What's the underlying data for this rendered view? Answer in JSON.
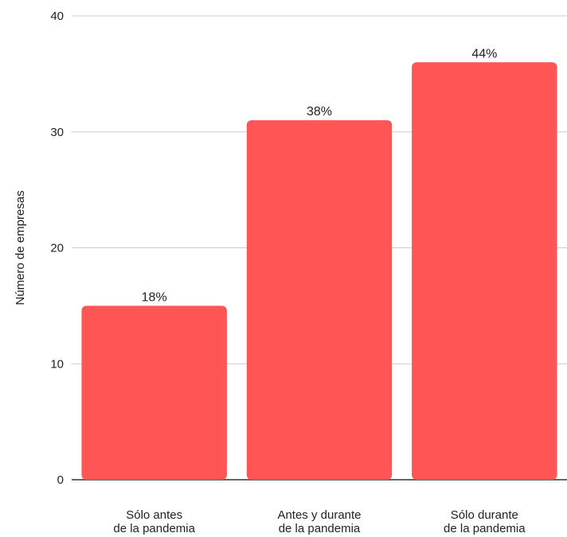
{
  "chart_data": {
    "type": "bar",
    "title": "",
    "xlabel": "",
    "ylabel": "Número de empresas",
    "ylim": [
      0,
      40
    ],
    "yticks": [
      0,
      10,
      20,
      30,
      40
    ],
    "grid": true,
    "legend": "none",
    "bar_color": "#ff5555",
    "grid_color": "#cccccc",
    "axis_color": "#333333",
    "categories": [
      [
        "Sólo antes",
        "de la pandemia"
      ],
      [
        "Antes y durante",
        "de la pandemia"
      ],
      [
        "Sólo durante",
        "de la pandemia"
      ]
    ],
    "values": [
      15,
      31,
      36
    ],
    "data_labels": [
      "18%",
      "38%",
      "44%"
    ]
  }
}
